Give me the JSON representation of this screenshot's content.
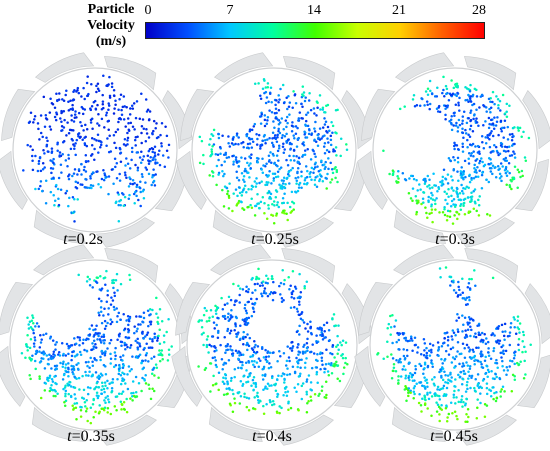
{
  "legend": {
    "title_line1": "Particle",
    "title_line2": "Velocity",
    "title_line3": "(m/s)",
    "ticks": [
      "0",
      "7",
      "14",
      "21",
      "28"
    ],
    "min": 0,
    "max": 28,
    "colors": [
      "#0000c8",
      "#0050ff",
      "#00c8ff",
      "#00ffa0",
      "#40ff00",
      "#c8ff00",
      "#ffd000",
      "#ff6000",
      "#ff0000"
    ]
  },
  "panels": [
    {
      "time_var": "t",
      "time_value": "=0.2s"
    },
    {
      "time_var": "t",
      "time_value": "=0.25s"
    },
    {
      "time_var": "t",
      "time_value": "=0.3s"
    },
    {
      "time_var": "t",
      "time_value": "=0.35s"
    },
    {
      "time_var": "t",
      "time_value": "=0.4s"
    },
    {
      "time_var": "t",
      "time_value": "=0.45s"
    }
  ]
}
